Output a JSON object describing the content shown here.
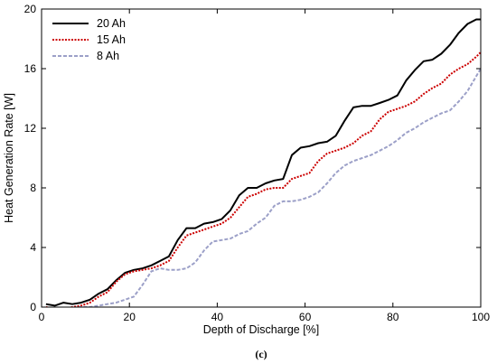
{
  "chart_data": {
    "type": "line",
    "xlabel": "Depth of Discharge [%]",
    "ylabel": "Heat Generation Rate [W]",
    "caption": "(c)",
    "xlim": [
      0,
      100
    ],
    "ylim": [
      0,
      20
    ],
    "xticks": [
      0,
      20,
      40,
      60,
      80,
      100
    ],
    "yticks": [
      0,
      4,
      8,
      12,
      16,
      20
    ],
    "legend_position": "top-left",
    "grid": false,
    "series": [
      {
        "name": "20 Ah",
        "color": "#000000",
        "style": "solid",
        "x": [
          1,
          3,
          5,
          7,
          9,
          11,
          13,
          15,
          17,
          19,
          21,
          23,
          25,
          27,
          29,
          31,
          33,
          35,
          37,
          39,
          41,
          43,
          45,
          47,
          49,
          51,
          53,
          55,
          57,
          59,
          61,
          63,
          65,
          67,
          69,
          71,
          73,
          75,
          77,
          79,
          81,
          83,
          85,
          87,
          89,
          91,
          93,
          95,
          97,
          99,
          100
        ],
        "values": [
          0.2,
          0.1,
          0.3,
          0.2,
          0.3,
          0.5,
          0.9,
          1.2,
          1.8,
          2.3,
          2.5,
          2.6,
          2.8,
          3.1,
          3.4,
          4.5,
          5.3,
          5.3,
          5.6,
          5.7,
          5.9,
          6.5,
          7.5,
          8.0,
          8.0,
          8.3,
          8.5,
          8.6,
          10.2,
          10.7,
          10.8,
          11.0,
          11.1,
          11.5,
          12.5,
          13.4,
          13.5,
          13.5,
          13.7,
          13.9,
          14.2,
          15.2,
          15.9,
          16.5,
          16.6,
          17.0,
          17.6,
          18.4,
          19.0,
          19.3,
          19.3
        ]
      },
      {
        "name": "15 Ah",
        "color": "#cc0000",
        "style": "dotted",
        "x": [
          1,
          3,
          5,
          7,
          9,
          11,
          13,
          15,
          17,
          19,
          21,
          23,
          25,
          27,
          29,
          31,
          33,
          35,
          37,
          39,
          41,
          43,
          45,
          47,
          49,
          51,
          53,
          55,
          57,
          59,
          61,
          63,
          65,
          67,
          69,
          71,
          73,
          75,
          77,
          79,
          81,
          83,
          85,
          87,
          89,
          91,
          93,
          95,
          97,
          99,
          100
        ],
        "values": [
          0.0,
          -0.1,
          -0.1,
          0.0,
          0.1,
          0.3,
          0.7,
          1.0,
          1.7,
          2.2,
          2.4,
          2.5,
          2.6,
          2.8,
          3.1,
          4.0,
          4.8,
          5.0,
          5.2,
          5.4,
          5.6,
          6.0,
          6.7,
          7.4,
          7.6,
          7.9,
          8.0,
          8.0,
          8.6,
          8.8,
          9.0,
          9.8,
          10.3,
          10.5,
          10.7,
          11.0,
          11.5,
          11.8,
          12.6,
          13.1,
          13.3,
          13.5,
          13.8,
          14.3,
          14.7,
          15.0,
          15.6,
          16.0,
          16.3,
          16.8,
          17.1
        ]
      },
      {
        "name": "8 Ah",
        "color": "#9ca0c8",
        "style": "dashed",
        "x": [
          1,
          3,
          5,
          7,
          9,
          11,
          13,
          15,
          17,
          19,
          21,
          23,
          25,
          27,
          29,
          31,
          33,
          35,
          37,
          39,
          41,
          43,
          45,
          47,
          49,
          51,
          53,
          55,
          57,
          59,
          61,
          63,
          65,
          67,
          69,
          71,
          73,
          75,
          77,
          79,
          81,
          83,
          85,
          87,
          89,
          91,
          93,
          95,
          97,
          99,
          100
        ],
        "values": [
          -0.1,
          -0.2,
          -0.2,
          -0.1,
          0.0,
          0.0,
          0.1,
          0.2,
          0.3,
          0.5,
          0.7,
          1.5,
          2.4,
          2.6,
          2.5,
          2.5,
          2.6,
          3.0,
          3.8,
          4.4,
          4.5,
          4.6,
          4.9,
          5.1,
          5.6,
          6.0,
          6.8,
          7.1,
          7.1,
          7.2,
          7.4,
          7.7,
          8.3,
          9.0,
          9.5,
          9.8,
          10.0,
          10.2,
          10.5,
          10.8,
          11.2,
          11.7,
          12.0,
          12.4,
          12.7,
          13.0,
          13.2,
          13.8,
          14.5,
          15.5,
          16.0
        ]
      }
    ]
  }
}
